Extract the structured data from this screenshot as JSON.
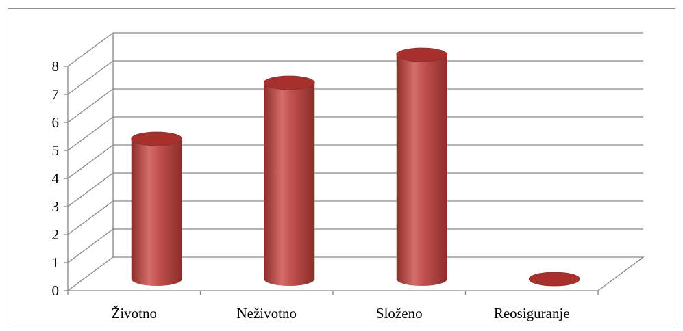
{
  "chart_data": {
    "type": "bar",
    "style": "3d-cylinder",
    "categories": [
      "Životno",
      "Neživotno",
      "Složeno",
      "Reosiguranje"
    ],
    "values": [
      5,
      7,
      8,
      0
    ],
    "ylim": [
      0,
      8
    ],
    "yticks": [
      "0",
      "1",
      "2",
      "3",
      "4",
      "5",
      "6",
      "7",
      "8"
    ],
    "grid": true,
    "legend": "none",
    "colors": {
      "bar": "#c0504d",
      "bar_dark": "#8c2d2a",
      "bar_light": "#d56e6a",
      "bar_top": "#a8302c",
      "grid": "#868686",
      "axis": "#868686"
    }
  }
}
